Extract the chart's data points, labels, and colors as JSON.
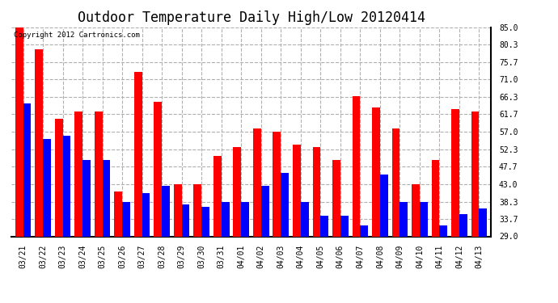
{
  "title": "Outdoor Temperature Daily High/Low 20120414",
  "copyright": "Copyright 2012 Cartronics.com",
  "categories": [
    "03/21",
    "03/22",
    "03/23",
    "03/24",
    "03/25",
    "03/26",
    "03/27",
    "03/28",
    "03/29",
    "03/30",
    "03/31",
    "04/01",
    "04/02",
    "04/03",
    "04/04",
    "04/05",
    "04/06",
    "04/07",
    "04/08",
    "04/09",
    "04/10",
    "04/11",
    "04/12",
    "04/13"
  ],
  "high_values": [
    85.0,
    79.0,
    60.5,
    62.5,
    62.5,
    41.0,
    73.0,
    65.0,
    43.0,
    43.0,
    50.5,
    53.0,
    58.0,
    57.0,
    53.5,
    53.0,
    49.5,
    66.5,
    63.5,
    58.0,
    43.0,
    49.5,
    63.0,
    62.5
  ],
  "low_values": [
    64.5,
    55.0,
    56.0,
    49.5,
    49.5,
    38.3,
    40.5,
    42.5,
    37.5,
    37.0,
    38.3,
    38.3,
    42.5,
    46.0,
    38.3,
    34.5,
    34.5,
    32.0,
    45.5,
    38.3,
    38.3,
    32.0,
    35.0,
    36.5
  ],
  "high_color": "#ff0000",
  "low_color": "#0000ff",
  "background_color": "#ffffff",
  "grid_color": "#b0b0b0",
  "ytick_labels": [
    "29.0",
    "33.7",
    "38.3",
    "43.0",
    "47.7",
    "52.3",
    "57.0",
    "61.7",
    "66.3",
    "71.0",
    "75.7",
    "80.3",
    "85.0"
  ],
  "ytick_values": [
    29.0,
    33.7,
    38.3,
    43.0,
    47.7,
    52.3,
    57.0,
    61.7,
    66.3,
    71.0,
    75.7,
    80.3,
    85.0
  ],
  "ylim": [
    29.0,
    85.0
  ],
  "bar_width": 0.4,
  "title_fontsize": 12,
  "tick_fontsize": 7,
  "copyright_fontsize": 6.5,
  "figsize": [
    6.9,
    3.75
  ],
  "dpi": 100
}
